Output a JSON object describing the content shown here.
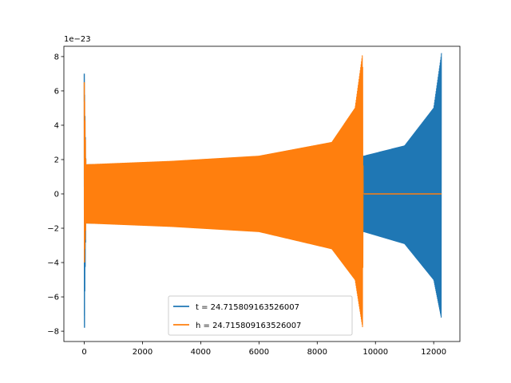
{
  "chart_data": {
    "type": "line",
    "title": "",
    "xlabel": "",
    "ylabel": "",
    "xlim": [
      -700,
      12900
    ],
    "ylim": [
      -8.6,
      8.6
    ],
    "y_scale_label": "1e−23",
    "x_ticks": [
      0,
      2000,
      4000,
      6000,
      8000,
      10000,
      12000
    ],
    "x_tick_labels": [
      "0",
      "2000",
      "4000",
      "6000",
      "8000",
      "10000",
      "12000"
    ],
    "y_ticks": [
      -8,
      -6,
      -4,
      -2,
      0,
      2,
      4,
      6,
      8
    ],
    "y_tick_labels": [
      "−8",
      "−6",
      "−4",
      "−2",
      "0",
      "2",
      "4",
      "6",
      "8"
    ],
    "grid": false,
    "legend_position": "lower center",
    "series": [
      {
        "name": "t = 24.715809163526007",
        "color": "#1f77b4",
        "x_range": [
          0,
          12270
        ],
        "envelope": [
          {
            "x": 0,
            "upper": 7.0,
            "lower": -7.8
          },
          {
            "x": 60,
            "upper": 1.7,
            "lower": -1.7
          },
          {
            "x": 3000,
            "upper": 1.8,
            "lower": -1.8
          },
          {
            "x": 9600,
            "upper": 2.2,
            "lower": -2.2
          },
          {
            "x": 11000,
            "upper": 2.8,
            "lower": -2.9
          },
          {
            "x": 12000,
            "upper": 5.0,
            "lower": -5.0
          },
          {
            "x": 12270,
            "upper": 8.2,
            "lower": -7.3
          }
        ]
      },
      {
        "name": "h = 24.715809163526007",
        "color": "#ff7f0e",
        "x_range": [
          0,
          9580
        ],
        "envelope": [
          {
            "x": 0,
            "upper": 6.5,
            "lower": -4.0
          },
          {
            "x": 60,
            "upper": 1.7,
            "lower": -1.7
          },
          {
            "x": 3000,
            "upper": 1.9,
            "lower": -1.9
          },
          {
            "x": 6000,
            "upper": 2.2,
            "lower": -2.2
          },
          {
            "x": 8500,
            "upper": 3.0,
            "lower": -3.2
          },
          {
            "x": 9300,
            "upper": 5.0,
            "lower": -5.0
          },
          {
            "x": 9560,
            "upper": 8.2,
            "lower": -7.8
          },
          {
            "x": 9580,
            "upper": 0,
            "lower": 0
          }
        ],
        "flat_after": {
          "x_start": 9600,
          "x_end": 12270,
          "y": 0
        }
      }
    ]
  }
}
